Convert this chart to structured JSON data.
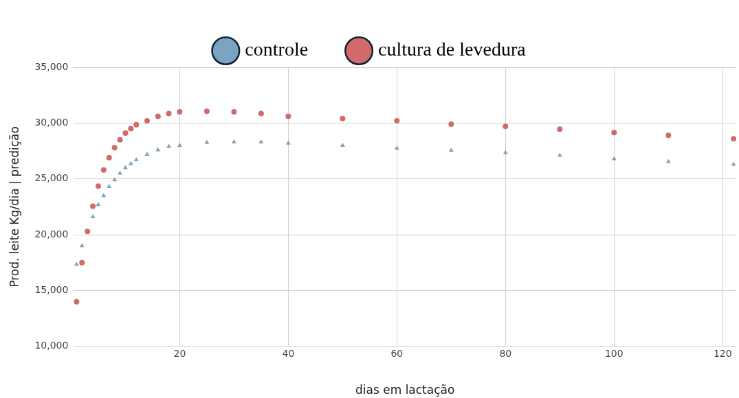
{
  "chart_data": {
    "type": "scatter",
    "xlabel": "dias em lactação",
    "ylabel": "Prod. leite Kg/dia | predição",
    "xlim": [
      0.5,
      122.5
    ],
    "xticks": [
      20,
      40,
      60,
      80,
      100,
      120
    ],
    "ylim": [
      10000,
      35000
    ],
    "yticks": [
      {
        "value": 10000,
        "label": "10,000"
      },
      {
        "value": 15000,
        "label": "15,000"
      },
      {
        "value": 20000,
        "label": "20,000"
      },
      {
        "value": 25000,
        "label": "25,000"
      },
      {
        "value": 30000,
        "label": "30,000"
      },
      {
        "value": 35000,
        "label": "35,000"
      }
    ],
    "grid": true,
    "legend": "top",
    "series": [
      {
        "name": "controle",
        "color": "#7ba3c2",
        "marker": "triangle",
        "x": [
          1,
          2,
          4,
          5,
          6,
          7,
          8,
          9,
          10,
          11,
          12,
          14,
          16,
          18,
          20,
          25,
          30,
          35,
          40,
          50,
          60,
          70,
          80,
          90,
          100,
          110,
          122
        ],
        "values": [
          17350,
          19000,
          21600,
          22700,
          23500,
          24300,
          24900,
          25500,
          26000,
          26350,
          26700,
          27200,
          27600,
          27900,
          28000,
          28250,
          28300,
          28300,
          28200,
          28000,
          27750,
          27550,
          27350,
          27100,
          26800,
          26550,
          26300
        ]
      },
      {
        "name": "cultura de levedura",
        "color": "#d2696b",
        "marker": "circle",
        "x": [
          1,
          2,
          3,
          4,
          5,
          6,
          7,
          8,
          9,
          10,
          11,
          12,
          14,
          16,
          18,
          20,
          25,
          30,
          35,
          40,
          50,
          60,
          70,
          80,
          90,
          100,
          110,
          122
        ],
        "values": [
          14000,
          17500,
          20300,
          22550,
          24350,
          25800,
          26900,
          27800,
          28500,
          29100,
          29500,
          29850,
          30200,
          30600,
          30850,
          31000,
          31050,
          31000,
          30850,
          30600,
          30400,
          30200,
          29900,
          29700,
          29450,
          29150,
          28900,
          28600
        ]
      }
    ]
  }
}
